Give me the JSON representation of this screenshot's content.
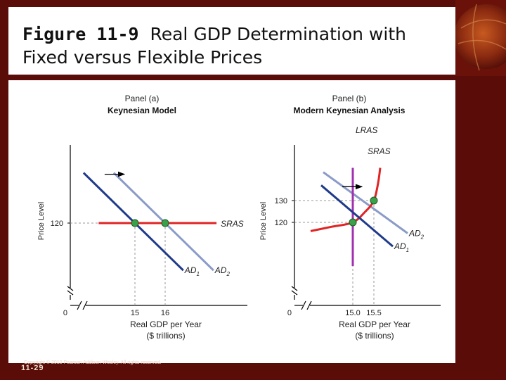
{
  "slide": {
    "title_bold": "Figure 11-9",
    "title_rest": "Real GDP Determination with Fixed versus Flexible Prices",
    "copyright": "Copyright © 2010 Pearson Addison-Wesley. All rights reserved.",
    "slide_number": "11-29"
  },
  "colors": {
    "background": "#5a0d08",
    "ad1": "#1f3a8a",
    "ad2": "#8a9bc9",
    "sras": "#e02424",
    "lras": "#a030b0",
    "equilibrium_point": "#3aa04a"
  },
  "chart_data": [
    {
      "type": "line",
      "panel_label": "Panel (a)",
      "title": "Keynesian Model",
      "xlabel": "Real GDP per Year",
      "xlabel_units": "($ trillions)",
      "ylabel": "Price Level",
      "origin_label": "0",
      "x_ticks": [
        "15",
        "16"
      ],
      "y_ticks": [
        "120"
      ],
      "series": [
        {
          "name": "SRAS",
          "points": [
            [
              13.8,
              120
            ],
            [
              17.7,
              120
            ]
          ]
        },
        {
          "name": "AD1",
          "points": [
            [
              13.3,
              137
            ],
            [
              16.6,
              104
            ]
          ]
        },
        {
          "name": "AD2",
          "points": [
            [
              14.3,
              137
            ],
            [
              17.6,
              104
            ]
          ]
        }
      ],
      "equilibria": [
        [
          15,
          120
        ],
        [
          16,
          120
        ]
      ],
      "shift_arrow": "right"
    },
    {
      "type": "line",
      "panel_label": "Panel (b)",
      "title": "Modern Keynesian Analysis",
      "xlabel": "Real GDP per Year",
      "xlabel_units": "($ trillions)",
      "ylabel": "Price Level",
      "origin_label": "0",
      "x_ticks": [
        "15.0",
        "15.5"
      ],
      "y_ticks": [
        "120",
        "130"
      ],
      "series": [
        {
          "name": "LRAS",
          "points": [
            [
              15.0,
              100
            ],
            [
              15.0,
              145
            ]
          ]
        },
        {
          "name": "SRAS",
          "points": [
            [
              14.0,
              116
            ],
            [
              14.5,
              118
            ],
            [
              15.0,
              120
            ],
            [
              15.3,
              125
            ],
            [
              15.5,
              130
            ],
            [
              15.6,
              138
            ],
            [
              15.65,
              145
            ]
          ]
        },
        {
          "name": "AD1",
          "points": [
            [
              14.25,
              137
            ],
            [
              15.95,
              109
            ]
          ]
        },
        {
          "name": "AD2",
          "points": [
            [
              14.3,
              143
            ],
            [
              16.3,
              115
            ]
          ]
        }
      ],
      "equilibria": [
        [
          15.0,
          120
        ],
        [
          15.5,
          130
        ]
      ],
      "shift_arrow": "right"
    }
  ]
}
